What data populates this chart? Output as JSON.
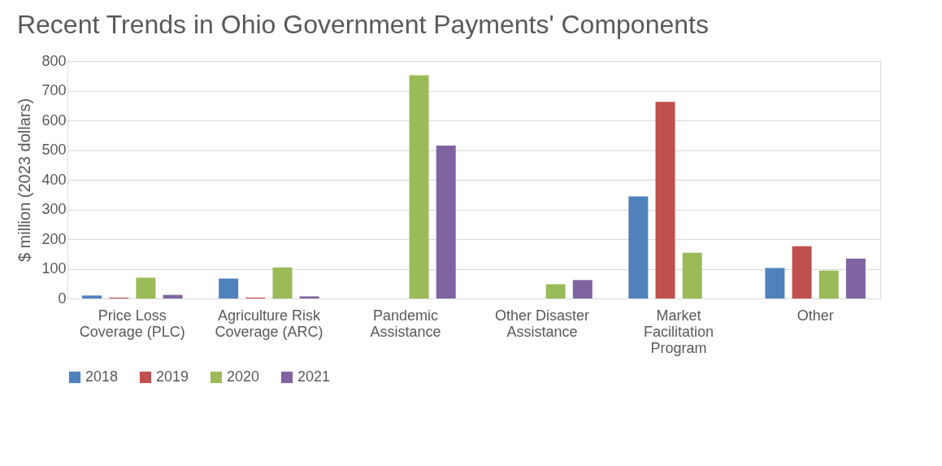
{
  "chart_data": {
    "type": "bar",
    "title": "Recent Trends in Ohio Government Payments' Components",
    "ylabel": "$ million (2023 dollars)",
    "categories": [
      "Price Loss Coverage (PLC)",
      "Agriculture Risk Coverage (ARC)",
      "Pandemic Assistance",
      "Other Disaster Assistance",
      "Market Facilitation Program",
      "Other"
    ],
    "series": [
      {
        "name": "2018",
        "color": "#4f81bd",
        "values": [
          10,
          67,
          null,
          null,
          344,
          103
        ]
      },
      {
        "name": "2019",
        "color": "#c0504d",
        "values": [
          3,
          3,
          null,
          null,
          662,
          176
        ]
      },
      {
        "name": "2020",
        "color": "#9bbb59",
        "values": [
          70,
          105,
          752,
          48,
          154,
          94
        ]
      },
      {
        "name": "2021",
        "color": "#8064a2",
        "values": [
          12,
          7,
          515,
          62,
          null,
          134
        ]
      }
    ],
    "ylim": [
      0,
      800
    ],
    "yticks": [
      0,
      100,
      200,
      300,
      400,
      500,
      600,
      700,
      800
    ],
    "grid": "y",
    "legend": "bottom"
  }
}
